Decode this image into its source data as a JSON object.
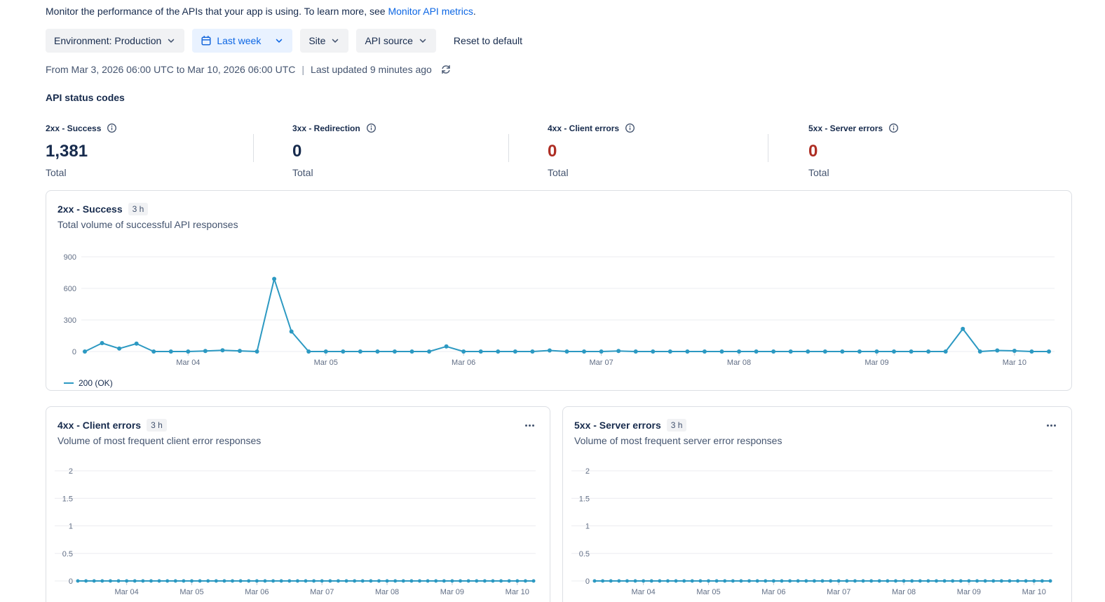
{
  "intro": {
    "text_before_link": "Monitor the performance of the APIs that your app is using. To learn more, see ",
    "link_text": "Monitor API metrics",
    "text_after_link": "."
  },
  "filters": {
    "environment_label": "Environment: Production",
    "date_range_label": "Last week",
    "site_label": "Site",
    "api_source_label": "API source",
    "reset_label": "Reset to default"
  },
  "date_info": {
    "range_text": "From Mar 3, 2026 06:00 UTC to Mar 10, 2026 06:00 UTC",
    "separator": "|",
    "last_updated": "Last updated 9 minutes ago"
  },
  "section_title": "API status codes",
  "stats": [
    {
      "label": "2xx - Success",
      "value": "1,381",
      "caption": "Total",
      "value_color": "#172B4D"
    },
    {
      "label": "3xx - Redirection",
      "value": "0",
      "caption": "Total",
      "value_color": "#172B4D"
    },
    {
      "label": "4xx - Client errors",
      "value": "0",
      "caption": "Total",
      "value_color": "#AE2E24"
    },
    {
      "label": "5xx - Server errors",
      "value": "0",
      "caption": "Total",
      "value_color": "#AE2E24"
    }
  ],
  "colors": {
    "line": "#2C99C2",
    "link": "#0C66E4",
    "error_value": "#AE2E24",
    "grid": "#EBECF0",
    "axis_text": "#626F86",
    "active_filter_bg": "#E9F2FF"
  },
  "chart_data": [
    {
      "type": "line",
      "title": "2xx - Success",
      "badge": "3 h",
      "subtitle": "Total volume of successful API responses",
      "x_start": "Mar 3, 2026 06:00 UTC",
      "x_end": "Mar 10, 2026 06:00 UTC",
      "point_interval_hours": 3,
      "ylim": [
        0,
        900
      ],
      "y_ticks": [
        0,
        300,
        600,
        900
      ],
      "x_tick_labels": [
        "Mar 04",
        "Mar 05",
        "Mar 06",
        "Mar 07",
        "Mar 08",
        "Mar 09",
        "Mar 10"
      ],
      "x_tick_indices": [
        6,
        14,
        22,
        30,
        38,
        46,
        54
      ],
      "line_color": "#2C99C2",
      "legend": [
        "200 (OK)"
      ],
      "total": 1381,
      "series": [
        {
          "name": "200 (OK)",
          "values": [
            0,
            80,
            28,
            75,
            0,
            0,
            0,
            5,
            12,
            6,
            0,
            690,
            190,
            0,
            0,
            0,
            0,
            0,
            0,
            0,
            0,
            48,
            0,
            0,
            0,
            0,
            0,
            10,
            0,
            0,
            0,
            5,
            0,
            0,
            0,
            0,
            0,
            0,
            0,
            0,
            0,
            0,
            0,
            0,
            0,
            0,
            0,
            0,
            0,
            0,
            0,
            215,
            0,
            10,
            7,
            0,
            0
          ]
        }
      ]
    },
    {
      "type": "line",
      "title": "4xx - Client errors",
      "badge": "3 h",
      "subtitle": "Volume of most frequent client error responses",
      "x_start": "Mar 3, 2026 06:00 UTC",
      "x_end": "Mar 10, 2026 06:00 UTC",
      "point_interval_hours": 3,
      "ylim": [
        0,
        2
      ],
      "y_ticks": [
        0,
        0.5,
        1,
        1.5,
        2
      ],
      "x_tick_labels": [
        "Mar 04",
        "Mar 05",
        "Mar 06",
        "Mar 07",
        "Mar 08",
        "Mar 09",
        "Mar 10"
      ],
      "x_tick_indices": [
        6,
        14,
        22,
        30,
        38,
        46,
        54
      ],
      "line_color": "#2C99C2",
      "legend": [],
      "total": 0,
      "series": [
        {
          "values": [
            0,
            0,
            0,
            0,
            0,
            0,
            0,
            0,
            0,
            0,
            0,
            0,
            0,
            0,
            0,
            0,
            0,
            0,
            0,
            0,
            0,
            0,
            0,
            0,
            0,
            0,
            0,
            0,
            0,
            0,
            0,
            0,
            0,
            0,
            0,
            0,
            0,
            0,
            0,
            0,
            0,
            0,
            0,
            0,
            0,
            0,
            0,
            0,
            0,
            0,
            0,
            0,
            0,
            0,
            0,
            0,
            0
          ]
        }
      ]
    },
    {
      "type": "line",
      "title": "5xx - Server errors",
      "badge": "3 h",
      "subtitle": "Volume of most frequent server error responses",
      "x_start": "Mar 3, 2026 06:00 UTC",
      "x_end": "Mar 10, 2026 06:00 UTC",
      "point_interval_hours": 3,
      "ylim": [
        0,
        2
      ],
      "y_ticks": [
        0,
        0.5,
        1,
        1.5,
        2
      ],
      "x_tick_labels": [
        "Mar 04",
        "Mar 05",
        "Mar 06",
        "Mar 07",
        "Mar 08",
        "Mar 09",
        "Mar 10"
      ],
      "x_tick_indices": [
        6,
        14,
        22,
        30,
        38,
        46,
        54
      ],
      "line_color": "#2C99C2",
      "legend": [],
      "total": 0,
      "series": [
        {
          "values": [
            0,
            0,
            0,
            0,
            0,
            0,
            0,
            0,
            0,
            0,
            0,
            0,
            0,
            0,
            0,
            0,
            0,
            0,
            0,
            0,
            0,
            0,
            0,
            0,
            0,
            0,
            0,
            0,
            0,
            0,
            0,
            0,
            0,
            0,
            0,
            0,
            0,
            0,
            0,
            0,
            0,
            0,
            0,
            0,
            0,
            0,
            0,
            0,
            0,
            0,
            0,
            0,
            0,
            0,
            0,
            0,
            0
          ]
        }
      ]
    }
  ]
}
